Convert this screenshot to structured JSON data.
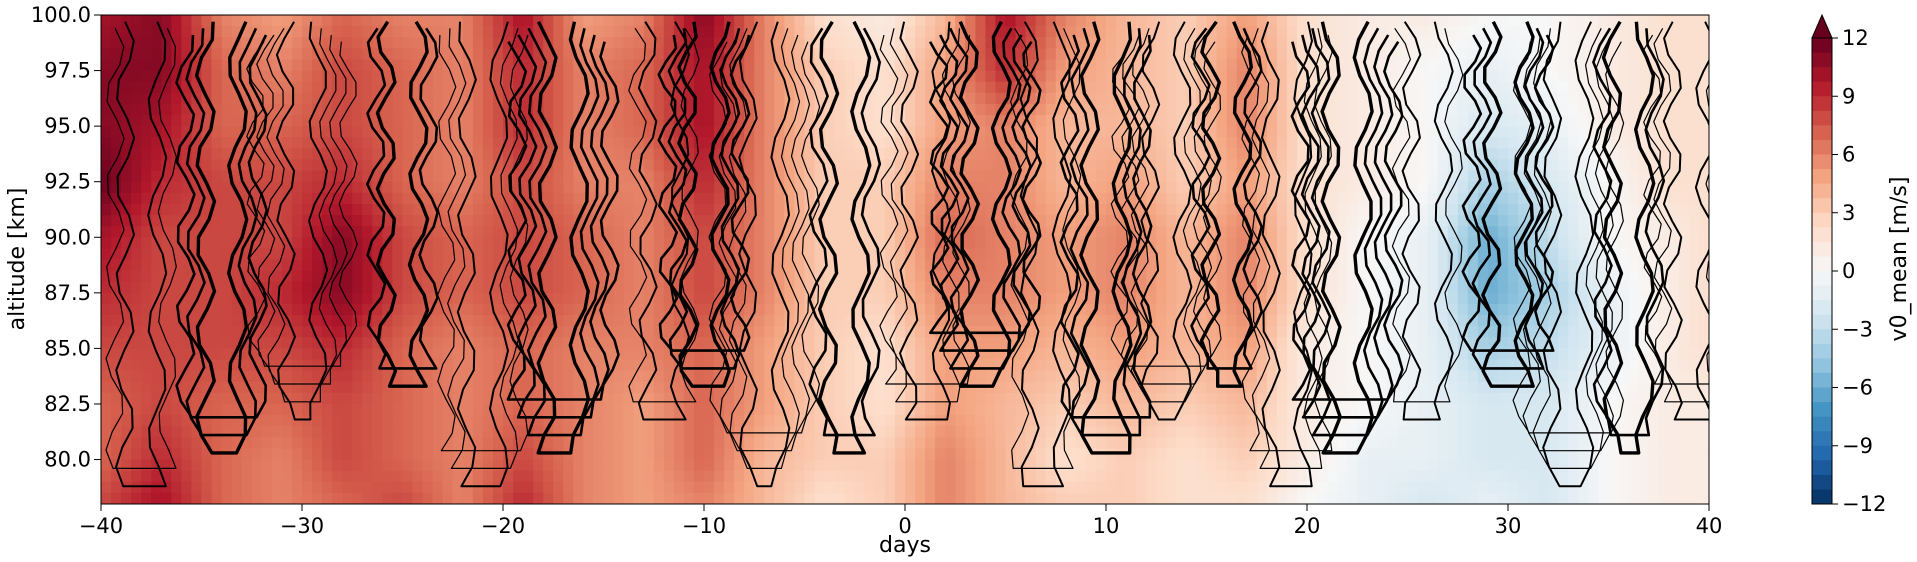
{
  "chart_data": {
    "type": "heatmap",
    "title": "",
    "xlabel": "days",
    "ylabel": "altitude [km]",
    "xlim": [
      -40,
      40
    ],
    "ylim": [
      78,
      100
    ],
    "x_ticks": [
      -40,
      -30,
      -20,
      -10,
      0,
      10,
      20,
      30,
      40
    ],
    "x_tick_labels": [
      "−40",
      "−30",
      "−20",
      "−10",
      "0",
      "10",
      "20",
      "30",
      "40"
    ],
    "y_ticks": [
      80,
      82.5,
      85,
      87.5,
      90,
      92.5,
      95,
      97.5,
      100
    ],
    "y_tick_labels": [
      "80.0",
      "82.5",
      "85.0",
      "87.5",
      "90.0",
      "92.5",
      "95.0",
      "97.5",
      "100.0"
    ],
    "colorbar": {
      "label": "v0_mean [m/s]",
      "range": [
        -12,
        12
      ],
      "ticks": [
        -12,
        -9,
        -6,
        -3,
        0,
        3,
        6,
        9,
        12
      ],
      "tick_labels": [
        "−12",
        "−9",
        "−6",
        "−3",
        "0",
        "3",
        "6",
        "9",
        "12"
      ],
      "extend": "max",
      "colormap": "RdBu_r",
      "colors": [
        "#053061",
        "#2166ac",
        "#4393c3",
        "#92c5de",
        "#d1e5f0",
        "#f7f7f7",
        "#fddbc7",
        "#f4a582",
        "#d6604d",
        "#b2182b",
        "#67001f"
      ]
    },
    "field_v0_mean": {
      "days": [
        -40,
        -37,
        -34,
        -31,
        -28,
        -25,
        -22,
        -19,
        -16,
        -13,
        -10,
        -7,
        -4,
        -1,
        2,
        5,
        8,
        11,
        14,
        17,
        20,
        23,
        26,
        29,
        32,
        35,
        38,
        40
      ],
      "altitude_km": [
        78,
        80,
        82.5,
        85,
        87.5,
        90,
        92.5,
        95,
        97.5,
        100
      ],
      "values_m_per_s": [
        [
          8,
          10,
          7,
          6,
          7,
          8,
          6,
          9,
          6,
          5,
          6,
          4,
          2,
          3,
          6,
          4,
          3,
          3,
          2,
          2,
          0,
          -1,
          -2,
          -1,
          -2,
          0,
          1,
          1
        ],
        [
          7,
          9,
          7,
          6,
          8,
          7,
          6,
          8,
          6,
          5,
          7,
          4,
          3,
          3,
          6,
          4,
          2,
          3,
          2,
          3,
          1,
          -1,
          -1,
          -2,
          -2,
          0,
          1,
          1
        ],
        [
          7,
          8,
          7,
          7,
          8,
          7,
          6,
          7,
          6,
          5,
          7,
          5,
          3,
          2,
          5,
          4,
          3,
          4,
          3,
          4,
          1,
          0,
          -1,
          -2,
          -2,
          0,
          1,
          1
        ],
        [
          8,
          8,
          8,
          8,
          9,
          7,
          6,
          7,
          6,
          6,
          7,
          5,
          3,
          2,
          5,
          5,
          4,
          5,
          4,
          5,
          1,
          0,
          -1,
          -4,
          -3,
          -1,
          1,
          2
        ],
        [
          9,
          8,
          8,
          9,
          11,
          8,
          7,
          8,
          7,
          6,
          8,
          6,
          3,
          3,
          6,
          6,
          5,
          6,
          4,
          6,
          2,
          0,
          -1,
          -6,
          -4,
          -1,
          1,
          2
        ],
        [
          10,
          8,
          8,
          8,
          11,
          8,
          7,
          8,
          7,
          6,
          8,
          6,
          3,
          3,
          7,
          6,
          5,
          6,
          4,
          6,
          2,
          0,
          -1,
          -6,
          -3,
          0,
          1,
          2
        ],
        [
          12,
          9,
          8,
          8,
          9,
          7,
          6,
          8,
          6,
          6,
          9,
          6,
          3,
          3,
          6,
          6,
          4,
          5,
          3,
          5,
          2,
          1,
          0,
          -4,
          -2,
          0,
          2,
          2
        ],
        [
          11,
          10,
          7,
          7,
          8,
          7,
          6,
          9,
          6,
          7,
          10,
          6,
          3,
          2,
          5,
          6,
          4,
          4,
          3,
          6,
          2,
          1,
          0,
          -2,
          -1,
          1,
          2,
          2
        ],
        [
          11,
          11,
          7,
          6,
          8,
          7,
          6,
          9,
          6,
          7,
          10,
          6,
          3,
          2,
          5,
          9,
          5,
          4,
          3,
          6,
          2,
          1,
          0,
          -1,
          0,
          1,
          2,
          2
        ],
        [
          10,
          11,
          6,
          5,
          7,
          6,
          6,
          10,
          5,
          6,
          11,
          6,
          2,
          1,
          4,
          10,
          6,
          4,
          3,
          5,
          2,
          1,
          1,
          0,
          0,
          1,
          2,
          2
        ]
      ]
    },
    "contour_overlay": {
      "description": "",
      "line_color": "#000000"
    }
  }
}
